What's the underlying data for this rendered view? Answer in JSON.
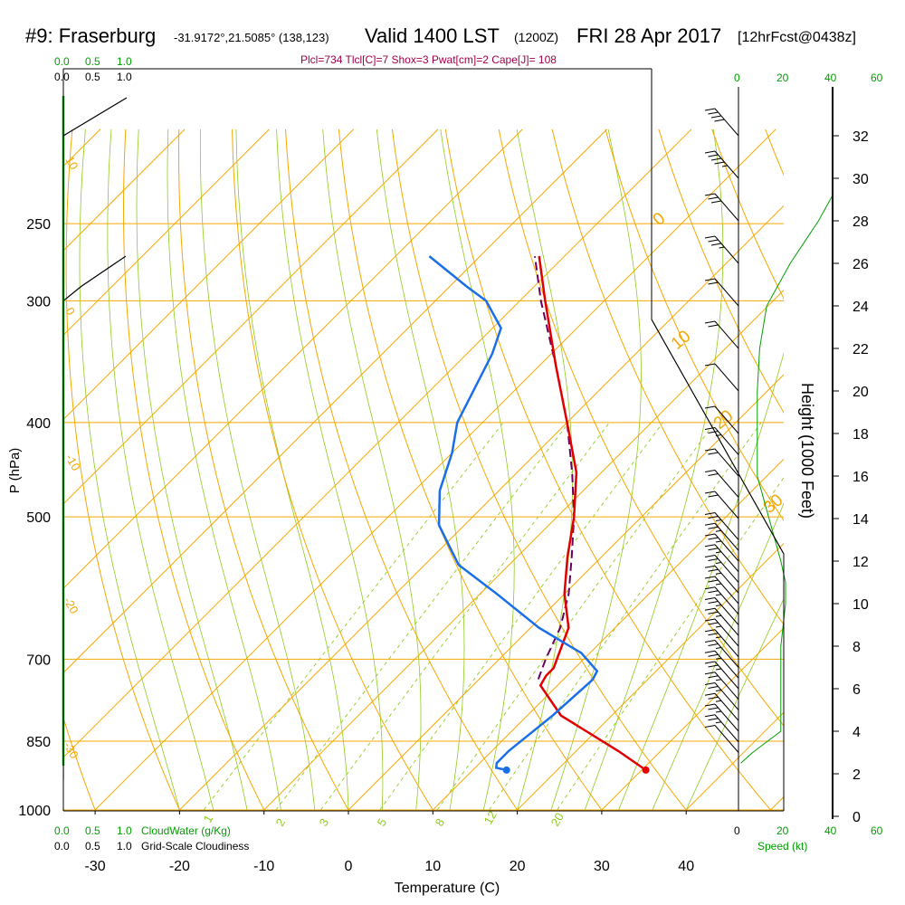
{
  "header": {
    "station": "#9: Fraserburg",
    "coords": "-31.9172°,21.5085° (138,123)",
    "valid": "Valid 1400 LST",
    "utc": "(1200Z)",
    "date": "FRI 28 Apr 2017",
    "forecast": "[12hrFcst@0438z]"
  },
  "indices": "Plcl=734 Tlcl[C]=7 Shox=3 Pwat[cm]=2 Cape[J]= 108",
  "labels": {
    "top_scale_green": [
      "0.0",
      "0.5",
      "1.0"
    ],
    "top_scale_black": [
      "0.0",
      "0.5",
      "1.0"
    ],
    "bottom_scale_green": [
      "0.0",
      "0.5",
      "1.0"
    ],
    "bottom_scale_black": [
      "0.0",
      "0.5",
      "1.0"
    ],
    "cloud_water": "CloudWater (g/Kg)",
    "cloudiness": "Grid-Scale Cloudiness",
    "speed": "Speed (kt)",
    "height_axis": "Height (1000 Feet)",
    "wind_top_black": [
      "0",
      "40"
    ],
    "wind_top_green": [
      "20",
      "60"
    ],
    "wind_bottom_black": [
      "0",
      "40"
    ],
    "wind_bottom_green": [
      "20",
      "60"
    ]
  },
  "colors": {
    "temperature": "#e00000",
    "dewpoint": "#1a6fe8",
    "parcel": "#6a0060",
    "isotherm_grid": "#f5a800",
    "mixing_ratio": "#8fcc1e",
    "moist_adiabat": "#8fcc1e",
    "green_axis": "#00a000",
    "index_text": "#a0004a"
  },
  "chart_data": {
    "type": "skew-t log-p",
    "title": "#9: Fraserburg -31.9172°,21.5085° (138,123) Valid 1400 LST (1200Z) FRI 28 Apr 2017 [12hrFcst@0438z]",
    "xlabel": "Temperature (C)",
    "ylabel": "P (hPa)",
    "y2label": "Height (1000 Feet)",
    "y_scale": "log",
    "x_ticks": [
      -30,
      -20,
      -10,
      0,
      10,
      20,
      30,
      40
    ],
    "p_ticks": [
      250,
      300,
      400,
      500,
      700,
      850,
      1000
    ],
    "height_ticks": [
      0,
      2,
      4,
      6,
      8,
      10,
      12,
      14,
      16,
      18,
      20,
      22,
      24,
      26,
      28,
      30,
      32
    ],
    "dry_adiabat_labels": [
      "10",
      "0",
      "-10",
      "-20",
      "-30"
    ],
    "moist_adiabat_labels": [
      "0",
      "10",
      "20",
      "30"
    ],
    "mixing_ratio_labels": [
      "1",
      "2",
      "3",
      "5",
      "8",
      "12",
      "20"
    ],
    "temperature": {
      "name": "Temperature",
      "p": [
        910,
        870,
        800,
        745,
        728,
        715,
        650,
        600,
        550,
        500,
        450,
        400,
        350,
        300,
        270
      ],
      "t": [
        30.5,
        25.0,
        14.0,
        8.0,
        7.5,
        7.5,
        4.5,
        0.0,
        -4.0,
        -8.0,
        -13.0,
        -20.0,
        -28.0,
        -37.0,
        -43.0
      ]
    },
    "dewpoint": {
      "name": "Dewpoint",
      "p": [
        910,
        905,
        895,
        870,
        800,
        735,
        720,
        690,
        650,
        600,
        560,
        510,
        470,
        430,
        400,
        340,
        320,
        300,
        290,
        270
      ],
      "td": [
        14.0,
        12.5,
        12.0,
        12.0,
        13.0,
        13.5,
        13.0,
        9.0,
        1.0,
        -8.0,
        -16.0,
        -23.0,
        -27.0,
        -30.0,
        -33.0,
        -37.0,
        -39.0,
        -44.0,
        -48.0,
        -56.0
      ]
    },
    "parcel": {
      "name": "Parcel",
      "p": [
        734,
        700,
        650,
        600,
        550,
        500,
        450,
        400,
        350,
        300,
        270
      ],
      "t": [
        7.0,
        5.5,
        3.5,
        0.5,
        -3.5,
        -8.0,
        -13.5,
        -20.0,
        -28.0,
        -37.5,
        -43.5
      ]
    },
    "surface_dewpoint": {
      "p": 910,
      "td": 14.0
    },
    "cloud_water": {
      "name": "CloudWater (g/Kg)",
      "p": [
        930,
        250
      ],
      "value": [
        0.0,
        0.0
      ]
    },
    "cloudiness": {
      "name": "Grid-Scale Cloudiness",
      "p": [
        930,
        300,
        290,
        270
      ],
      "value": [
        0.0,
        0.0,
        0.1,
        0.35
      ]
    },
    "wind_speed": {
      "name": "Speed (kt)",
      "height_kft": [
        2.5,
        3,
        4,
        6,
        8,
        10,
        11,
        12,
        14,
        16,
        18,
        20,
        22,
        24,
        26,
        28,
        30,
        32,
        33.5
      ],
      "speed": [
        1,
        6,
        18,
        18,
        18,
        20,
        20,
        18,
        13,
        8,
        8,
        8,
        9,
        12,
        22,
        34,
        44,
        48,
        49
      ]
    },
    "wind_barbs": {
      "height_kft": [
        3,
        3.5,
        4,
        4.5,
        5,
        5.5,
        6,
        6.5,
        7,
        7.5,
        8,
        8.5,
        9,
        9.5,
        10,
        10.5,
        11,
        11.5,
        12,
        12.5,
        13,
        14,
        15,
        16,
        17,
        18,
        20,
        22,
        24,
        26,
        28,
        30,
        32
      ],
      "speed_kt": [
        10,
        15,
        15,
        15,
        15,
        15,
        15,
        15,
        15,
        15,
        15,
        15,
        15,
        15,
        15,
        15,
        15,
        15,
        15,
        15,
        15,
        20,
        20,
        20,
        15,
        10,
        10,
        20,
        20,
        25,
        30,
        35,
        40
      ],
      "dir_deg": [
        300,
        300,
        300,
        300,
        300,
        300,
        300,
        300,
        300,
        300,
        300,
        300,
        300,
        300,
        300,
        300,
        300,
        300,
        300,
        300,
        300,
        300,
        300,
        300,
        300,
        300,
        300,
        300,
        300,
        290,
        290,
        290,
        290
      ]
    },
    "grid": true
  }
}
